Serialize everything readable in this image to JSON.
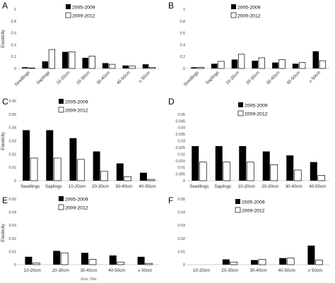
{
  "colors": {
    "series_2005_2009": "#000000",
    "series_2009_2012": "#ffffff",
    "outline": "#000000",
    "axis": "#bfbfbf"
  },
  "chart_data": [
    {
      "panel": "A",
      "type": "bar",
      "ylabel": "Elasticity",
      "xlabel": "",
      "ylim": [
        0,
        1
      ],
      "yticks": [
        "0",
        "0.2",
        "0.4",
        "0.6",
        "0.8",
        "1"
      ],
      "rotated_ticks": true,
      "legend_position": "top-right",
      "categories": [
        "Seedlings",
        "Saplings",
        "10-20cm",
        "20-30cm",
        "30-40cm",
        "40-50cm",
        "≥ 50cm"
      ],
      "series": [
        {
          "name": "2005-2009",
          "values": [
            0.02,
            0.12,
            0.28,
            0.18,
            0.09,
            0.05,
            0.07
          ]
        },
        {
          "name": "2009-2012",
          "values": [
            0.01,
            0.32,
            0.28,
            0.21,
            0.07,
            0.04,
            0.02
          ]
        }
      ]
    },
    {
      "panel": "B",
      "type": "bar",
      "ylabel": "",
      "xlabel": "",
      "ylim": [
        0,
        1
      ],
      "yticks": [
        "0",
        "0.2",
        "0.4",
        "0.6",
        "0.8",
        "1"
      ],
      "rotated_ticks": true,
      "legend_position": "top-right",
      "categories": [
        "Seedlings",
        "Saplings",
        "10-20cm",
        "20-30cm",
        "30-40cm",
        "40-50cm",
        "≥ 50cm"
      ],
      "series": [
        {
          "name": "2005-2009",
          "values": [
            0.02,
            0.08,
            0.15,
            0.13,
            0.1,
            0.08,
            0.29
          ]
        },
        {
          "name": "2009-2012",
          "values": [
            0.02,
            0.12,
            0.24,
            0.18,
            0.15,
            0.1,
            0.13
          ]
        }
      ]
    },
    {
      "panel": "C",
      "type": "bar",
      "ylabel": "Elasticity",
      "xlabel": "",
      "ylim": [
        0,
        0.06
      ],
      "yticks": [
        "0",
        "0.01",
        "0.02",
        "0.03",
        "0.04",
        "0.05",
        "0.06"
      ],
      "rotated_ticks": false,
      "legend_position": "top-center",
      "categories": [
        "Seedlings",
        "Saplings",
        "10-20cm",
        "20-30cm",
        "30-40cm",
        "40-50cm"
      ],
      "series": [
        {
          "name": "2005-2009",
          "values": [
            0.038,
            0.038,
            0.032,
            0.022,
            0.013,
            0.006
          ]
        },
        {
          "name": "2009-2012",
          "values": [
            0.017,
            0.017,
            0.016,
            0.007,
            0.003,
            0.001
          ]
        }
      ]
    },
    {
      "panel": "D",
      "type": "bar",
      "ylabel": "",
      "xlabel": "",
      "ylim": [
        0,
        0.06
      ],
      "yticks": [
        "0",
        "0.005",
        "0.01",
        "0.015",
        "0.02",
        "0.025",
        "0.03",
        "0.035",
        "0.04",
        "0.045",
        "0.05"
      ],
      "rotated_ticks": false,
      "legend_position": "top-right",
      "categories": [
        "Seedlings",
        "Saplings",
        "10-20cm",
        "20-30cm",
        "30-40cm",
        "40-50cm"
      ],
      "series": [
        {
          "name": "2005-2009",
          "values": [
            0.026,
            0.026,
            0.026,
            0.022,
            0.019,
            0.014
          ]
        },
        {
          "name": "2009-2012",
          "values": [
            0.014,
            0.014,
            0.014,
            0.012,
            0.008,
            0.004
          ]
        }
      ]
    },
    {
      "panel": "E",
      "type": "bar",
      "ylabel": "Elasticity",
      "xlabel": "Axis Title",
      "ylim": [
        0,
        0.05
      ],
      "yticks": [
        "0",
        "0.01",
        "0.02",
        "0.03",
        "0.04",
        "0.05"
      ],
      "rotated_ticks": false,
      "legend_position": "top-center",
      "categories": [
        "10-20cm",
        "20-30cm",
        "30-40cm",
        "40-50cm",
        "≥ 50cm"
      ],
      "series": [
        {
          "name": "2005-2009",
          "values": [
            0.006,
            0.0105,
            0.009,
            0.007,
            0.006
          ]
        },
        {
          "name": "2009-2012",
          "values": [
            0.0012,
            0.009,
            0.004,
            0.002,
            0.001
          ]
        }
      ]
    },
    {
      "panel": "F",
      "type": "bar",
      "ylabel": "",
      "xlabel": "",
      "ylim": [
        0,
        0.05
      ],
      "yticks": [
        "0",
        "0.01",
        "0.02",
        "0.03",
        "0.04",
        "0.05"
      ],
      "rotated_ticks": false,
      "legend_position": "top-center",
      "categories": [
        "10-20cm",
        "20-30cm",
        "30-40cm",
        "40-50cm",
        "≥ 50cm"
      ],
      "series": [
        {
          "name": "2005-2009",
          "values": [
            0,
            0.004,
            0.0035,
            0.005,
            0.0145
          ]
        },
        {
          "name": "2009-2012",
          "values": [
            0,
            0.002,
            0.004,
            0.005,
            0.0035
          ]
        }
      ]
    }
  ]
}
